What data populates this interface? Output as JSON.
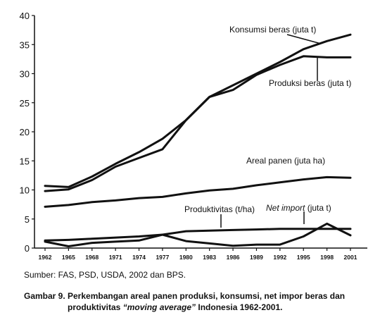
{
  "chart_data": {
    "type": "line",
    "x": [
      "1962",
      "1965",
      "1968",
      "1971",
      "1974",
      "1977",
      "1980",
      "1983",
      "1986",
      "1989",
      "1992",
      "1995",
      "1998",
      "2001"
    ],
    "ylim": [
      0,
      40
    ],
    "yticks": [
      0,
      5,
      10,
      15,
      20,
      25,
      30,
      35,
      40
    ],
    "grid": false,
    "series": [
      {
        "name": "Konsumsi beras (juta t)",
        "values": [
          10.7,
          10.5,
          12.3,
          14.5,
          16.5,
          18.8,
          22.0,
          26.0,
          28.0,
          30.0,
          32.0,
          34.2,
          35.6,
          36.7
        ]
      },
      {
        "name": "Produksi beras (juta t)",
        "values": [
          9.8,
          10.1,
          11.7,
          14.0,
          15.5,
          17.0,
          22.0,
          26.0,
          27.2,
          29.8,
          31.5,
          33.0,
          32.8,
          32.8
        ]
      },
      {
        "name": "Areal panen (juta ha)",
        "values": [
          7.1,
          7.4,
          7.9,
          8.2,
          8.6,
          8.8,
          9.4,
          9.9,
          10.2,
          10.8,
          11.3,
          11.8,
          12.2,
          12.1
        ]
      },
      {
        "name": "Produktivitas (t/ha)",
        "values": [
          1.3,
          1.4,
          1.6,
          1.8,
          2.0,
          2.3,
          2.9,
          3.0,
          3.1,
          3.2,
          3.3,
          3.3,
          3.3,
          3.3
        ]
      },
      {
        "name": "Net import (juta t)",
        "values": [
          1.1,
          0.3,
          0.9,
          1.1,
          1.3,
          2.3,
          1.2,
          0.8,
          0.4,
          0.6,
          0.6,
          2.0,
          4.2,
          2.2
        ]
      }
    ],
    "labels": {
      "konsumsi": "Konsumsi beras (juta t)",
      "produksi": "Produksi beras (juta t)",
      "areal": "Areal panen (juta ha)",
      "produktivitas": "Produktivitas (t/ha)",
      "net_import_italic": "Net import",
      "net_import_unit": " (juta t)"
    }
  },
  "source": "Sumber: FAS, PSD, USDA, 2002 dan BPS.",
  "caption": {
    "number": "Gambar 9.",
    "text_before": "Perkembangan areal panen produksi, konsumsi, net impor beras dan produktivitas ",
    "text_italic": "“moving average”",
    "text_after": " Indonesia 1962-2001."
  }
}
